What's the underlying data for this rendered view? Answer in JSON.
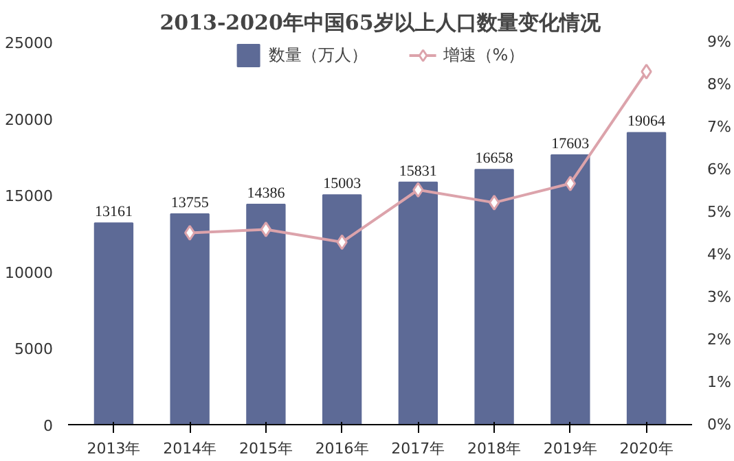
{
  "chart_data": {
    "type": "bar",
    "title": "2013-2020年中国65岁以上人口数量变化情况",
    "categories": [
      "2013年",
      "2014年",
      "2015年",
      "2016年",
      "2017年",
      "2018年",
      "2019年",
      "2020年"
    ],
    "series": [
      {
        "name": "数量（万人）",
        "color": "#5d6a96",
        "values": [
          13161,
          13755,
          14386,
          15003,
          15831,
          16658,
          17603,
          19064
        ],
        "value_labels": [
          "13161",
          "13755",
          "14386",
          "15003",
          "15831",
          "16658",
          "17603",
          "19064"
        ]
      },
      {
        "name": "增速（%）",
        "type": "line",
        "axis": "y2",
        "color": "#dca3ab",
        "marker": "diamond",
        "line_style": "solid",
        "values": [
          null,
          4.51,
          4.59,
          4.29,
          5.52,
          5.22,
          5.67,
          8.3
        ]
      }
    ],
    "ylim": [
      0,
      25000
    ],
    "yticks": [
      0,
      5000,
      10000,
      15000,
      20000,
      25000
    ],
    "y2lim": [
      0,
      9
    ],
    "y2ticks": [
      {
        "value": 0,
        "label": "0%"
      },
      {
        "value": 1,
        "label": "1%"
      },
      {
        "value": 2,
        "label": "2%"
      },
      {
        "value": 3,
        "label": "3%"
      },
      {
        "value": 4,
        "label": "4%"
      },
      {
        "value": 5,
        "label": "5%"
      },
      {
        "value": 6,
        "label": "6%"
      },
      {
        "value": 7,
        "label": "7%"
      },
      {
        "value": 8,
        "label": "8%"
      },
      {
        "value": 9,
        "label": "9%"
      }
    ],
    "grid": false,
    "legend": "top"
  }
}
